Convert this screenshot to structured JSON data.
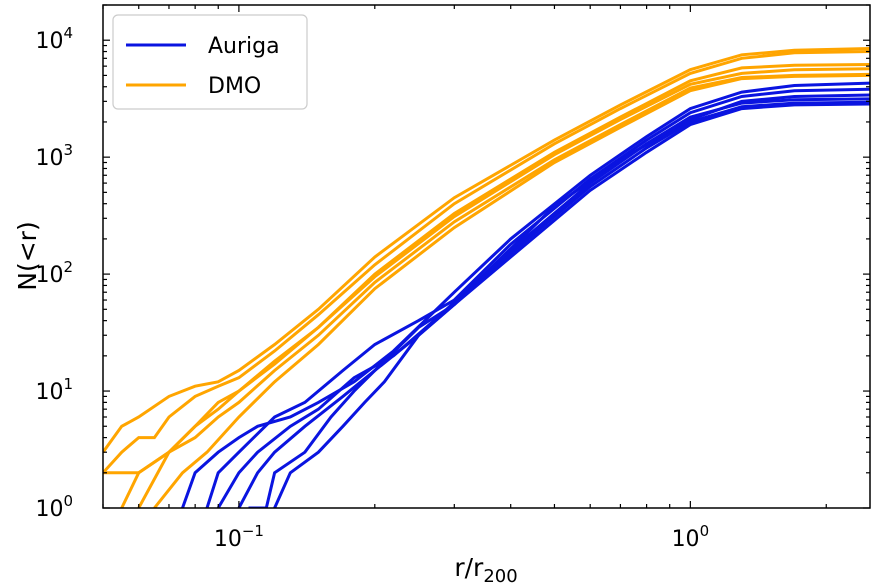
{
  "chart_data": {
    "type": "line",
    "title": "",
    "xlabel": "r/r",
    "xlabel_sub": "200",
    "ylabel": "N(<r)",
    "xscale": "log",
    "yscale": "log",
    "xlim": [
      0.05,
      2.5
    ],
    "ylim": [
      1,
      20000
    ],
    "grid": false,
    "legend_position": "top-left",
    "x_ticks": [
      {
        "value": 0.1,
        "base": "10",
        "exp": "−1"
      },
      {
        "value": 1,
        "base": "10",
        "exp": "0"
      }
    ],
    "y_ticks": [
      {
        "value": 1,
        "base": "10",
        "exp": "0"
      },
      {
        "value": 10,
        "base": "10",
        "exp": "1"
      },
      {
        "value": 100,
        "base": "10",
        "exp": "2"
      },
      {
        "value": 1000,
        "base": "10",
        "exp": "3"
      },
      {
        "value": 10000,
        "base": "10",
        "exp": "4"
      }
    ],
    "groups": [
      {
        "label": "Auriga",
        "color": "#0a14e0"
      },
      {
        "label": "DMO",
        "color": "#ffa500"
      }
    ],
    "series": [
      {
        "group": "DMO",
        "points": [
          [
            0.05,
            3
          ],
          [
            0.055,
            5
          ],
          [
            0.06,
            6
          ],
          [
            0.07,
            9
          ],
          [
            0.08,
            11
          ],
          [
            0.09,
            12
          ],
          [
            0.1,
            15
          ],
          [
            0.12,
            25
          ],
          [
            0.15,
            50
          ],
          [
            0.2,
            140
          ],
          [
            0.3,
            450
          ],
          [
            0.5,
            1400
          ],
          [
            0.7,
            2800
          ],
          [
            1.0,
            5600
          ],
          [
            1.3,
            7500
          ],
          [
            1.7,
            8200
          ],
          [
            2.5,
            8500
          ]
        ]
      },
      {
        "group": "DMO",
        "points": [
          [
            0.05,
            2
          ],
          [
            0.055,
            3
          ],
          [
            0.06,
            4
          ],
          [
            0.065,
            4
          ],
          [
            0.07,
            6
          ],
          [
            0.08,
            9
          ],
          [
            0.09,
            11
          ],
          [
            0.1,
            13
          ],
          [
            0.12,
            22
          ],
          [
            0.15,
            45
          ],
          [
            0.2,
            120
          ],
          [
            0.3,
            400
          ],
          [
            0.5,
            1300
          ],
          [
            0.7,
            2600
          ],
          [
            1.0,
            5200
          ],
          [
            1.3,
            7000
          ],
          [
            1.7,
            7800
          ],
          [
            2.5,
            8000
          ]
        ]
      },
      {
        "group": "DMO",
        "points": [
          [
            0.05,
            2
          ],
          [
            0.06,
            2
          ],
          [
            0.07,
            3
          ],
          [
            0.08,
            5
          ],
          [
            0.09,
            7
          ],
          [
            0.1,
            10
          ],
          [
            0.12,
            18
          ],
          [
            0.15,
            35
          ],
          [
            0.2,
            100
          ],
          [
            0.3,
            330
          ],
          [
            0.5,
            1100
          ],
          [
            0.7,
            2200
          ],
          [
            1.0,
            4500
          ],
          [
            1.3,
            5800
          ],
          [
            1.7,
            6100
          ],
          [
            2.5,
            6200
          ]
        ]
      },
      {
        "group": "DMO",
        "points": [
          [
            0.055,
            1
          ],
          [
            0.06,
            2
          ],
          [
            0.07,
            3
          ],
          [
            0.08,
            4
          ],
          [
            0.09,
            6
          ],
          [
            0.1,
            8
          ],
          [
            0.12,
            15
          ],
          [
            0.15,
            30
          ],
          [
            0.2,
            85
          ],
          [
            0.3,
            280
          ],
          [
            0.5,
            950
          ],
          [
            0.7,
            1900
          ],
          [
            1.0,
            3900
          ],
          [
            1.3,
            4800
          ],
          [
            1.7,
            5000
          ],
          [
            2.5,
            5100
          ]
        ]
      },
      {
        "group": "DMO",
        "points": [
          [
            0.06,
            1
          ],
          [
            0.07,
            3
          ],
          [
            0.08,
            5
          ],
          [
            0.09,
            8
          ],
          [
            0.1,
            10
          ],
          [
            0.12,
            17
          ],
          [
            0.15,
            35
          ],
          [
            0.2,
            95
          ],
          [
            0.3,
            310
          ],
          [
            0.5,
            1050
          ],
          [
            0.7,
            2100
          ],
          [
            1.0,
            4200
          ],
          [
            1.3,
            5200
          ],
          [
            1.7,
            5600
          ],
          [
            2.5,
            5700
          ]
        ]
      },
      {
        "group": "DMO",
        "points": [
          [
            0.065,
            1
          ],
          [
            0.075,
            2
          ],
          [
            0.085,
            3
          ],
          [
            0.1,
            6
          ],
          [
            0.12,
            12
          ],
          [
            0.15,
            25
          ],
          [
            0.2,
            75
          ],
          [
            0.3,
            250
          ],
          [
            0.5,
            900
          ],
          [
            0.7,
            1800
          ],
          [
            1.0,
            3700
          ],
          [
            1.3,
            4700
          ],
          [
            1.7,
            4900
          ],
          [
            2.5,
            5000
          ]
        ]
      },
      {
        "group": "Auriga",
        "points": [
          [
            0.075,
            1
          ],
          [
            0.08,
            2
          ],
          [
            0.09,
            3
          ],
          [
            0.1,
            4
          ],
          [
            0.11,
            5
          ],
          [
            0.13,
            6
          ],
          [
            0.15,
            8
          ],
          [
            0.18,
            12
          ],
          [
            0.22,
            22
          ],
          [
            0.3,
            70
          ],
          [
            0.4,
            200
          ],
          [
            0.6,
            700
          ],
          [
            0.8,
            1500
          ],
          [
            1.0,
            2600
          ],
          [
            1.3,
            3600
          ],
          [
            1.7,
            4100
          ],
          [
            2.5,
            4300
          ]
        ]
      },
      {
        "group": "Auriga",
        "points": [
          [
            0.085,
            1
          ],
          [
            0.09,
            2
          ],
          [
            0.1,
            3
          ],
          [
            0.12,
            6
          ],
          [
            0.14,
            8
          ],
          [
            0.17,
            15
          ],
          [
            0.2,
            25
          ],
          [
            0.25,
            40
          ],
          [
            0.3,
            60
          ],
          [
            0.4,
            180
          ],
          [
            0.6,
            650
          ],
          [
            0.8,
            1400
          ],
          [
            1.0,
            2400
          ],
          [
            1.3,
            3300
          ],
          [
            1.7,
            3700
          ],
          [
            2.5,
            3800
          ]
        ]
      },
      {
        "group": "Auriga",
        "points": [
          [
            0.09,
            1
          ],
          [
            0.1,
            2
          ],
          [
            0.11,
            3
          ],
          [
            0.13,
            5
          ],
          [
            0.15,
            7
          ],
          [
            0.18,
            13
          ],
          [
            0.22,
            20
          ],
          [
            0.28,
            45
          ],
          [
            0.35,
            100
          ],
          [
            0.5,
            380
          ],
          [
            0.7,
            950
          ],
          [
            1.0,
            2100
          ],
          [
            1.3,
            3000
          ],
          [
            1.7,
            3300
          ],
          [
            2.5,
            3400
          ]
        ]
      },
      {
        "group": "Auriga",
        "points": [
          [
            0.1,
            1
          ],
          [
            0.11,
            2
          ],
          [
            0.12,
            3
          ],
          [
            0.14,
            5
          ],
          [
            0.17,
            9
          ],
          [
            0.2,
            15
          ],
          [
            0.25,
            30
          ],
          [
            0.3,
            55
          ],
          [
            0.4,
            160
          ],
          [
            0.6,
            600
          ],
          [
            0.8,
            1300
          ],
          [
            1.0,
            2200
          ],
          [
            1.3,
            2900
          ],
          [
            1.7,
            3100
          ],
          [
            2.5,
            3150
          ]
        ]
      },
      {
        "group": "Auriga",
        "points": [
          [
            0.105,
            1
          ],
          [
            0.115,
            1
          ],
          [
            0.12,
            2
          ],
          [
            0.14,
            3
          ],
          [
            0.16,
            6
          ],
          [
            0.18,
            10
          ],
          [
            0.2,
            15
          ],
          [
            0.25,
            35
          ],
          [
            0.3,
            55
          ],
          [
            0.4,
            150
          ],
          [
            0.6,
            560
          ],
          [
            0.8,
            1200
          ],
          [
            1.0,
            2000
          ],
          [
            1.3,
            2700
          ],
          [
            1.7,
            2900
          ],
          [
            2.5,
            2950
          ]
        ]
      },
      {
        "group": "Auriga",
        "points": [
          [
            0.12,
            1
          ],
          [
            0.13,
            2
          ],
          [
            0.15,
            3
          ],
          [
            0.17,
            5
          ],
          [
            0.19,
            8
          ],
          [
            0.21,
            12
          ],
          [
            0.25,
            30
          ],
          [
            0.3,
            55
          ],
          [
            0.4,
            140
          ],
          [
            0.6,
            520
          ],
          [
            0.8,
            1100
          ],
          [
            1.0,
            1900
          ],
          [
            1.3,
            2600
          ],
          [
            1.7,
            2800
          ],
          [
            2.5,
            2850
          ]
        ]
      }
    ]
  }
}
